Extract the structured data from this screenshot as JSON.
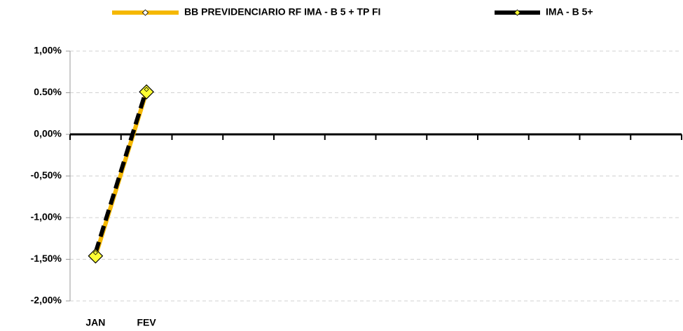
{
  "chart_data": {
    "type": "line",
    "categories": [
      "JAN",
      "FEV",
      null,
      null,
      null,
      null,
      null,
      null,
      null,
      null,
      null,
      null
    ],
    "series": [
      {
        "name": "BB PREVIDENCIARIO RF IMA - B 5 + TP FI",
        "color": "#f5b800",
        "marker_color": "#ffff33",
        "values": [
          -1.46,
          0.51,
          null,
          null,
          null,
          null,
          null,
          null,
          null,
          null,
          null,
          null
        ]
      },
      {
        "name": "IMA - B 5+",
        "color": "#000000",
        "marker_color": "#ffff33",
        "values": [
          -1.42,
          0.54,
          null,
          null,
          null,
          null,
          null,
          null,
          null,
          null,
          null,
          null
        ]
      }
    ],
    "ylim": [
      -2,
      1
    ],
    "yticks": [
      {
        "value": -2,
        "label": "-2,00%"
      },
      {
        "value": -1.5,
        "label": "-1,50%"
      },
      {
        "value": -1,
        "label": "-1,00%"
      },
      {
        "value": -0.5,
        "label": "-0,50%"
      },
      {
        "value": 0,
        "label": "0,00%"
      },
      {
        "value": 0.5,
        "label": "0.50%"
      },
      {
        "value": 1,
        "label": "1,00%"
      }
    ],
    "grid": true
  }
}
